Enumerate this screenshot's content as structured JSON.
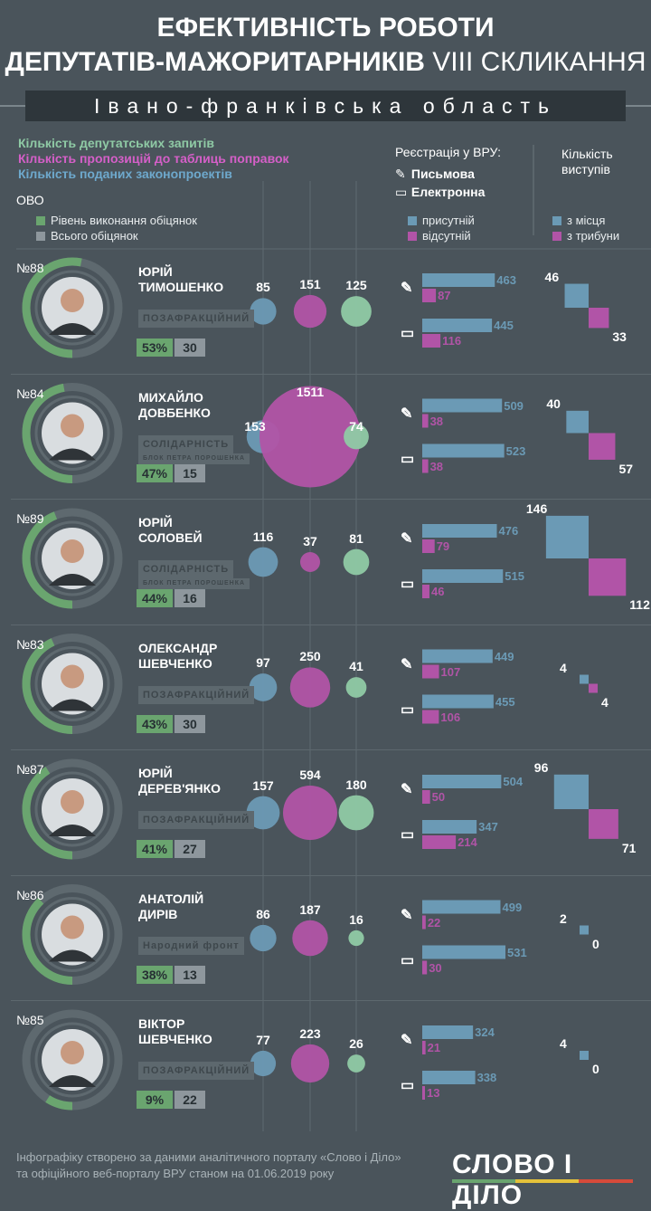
{
  "title": {
    "line1": "ЕФЕКТИВНІСТЬ РОБОТИ",
    "line2_bold": "ДЕПУТАТІВ-МАЖОРИТАРНИКІВ",
    "line2_rest": " VIII СКЛИКАННЯ"
  },
  "region": "Івано-франківська область",
  "legend": {
    "requests": "Кількість депутатських запитів",
    "amendments": "Кількість пропозицій до таблиць поправок",
    "bills": "Кількість поданих законопроектів",
    "ovo": "ОВО",
    "promises_done": "Рівень виконання обіцянок",
    "promises_total": "Всього обіцянок",
    "registration_title": "Реєстрація у ВРУ:",
    "written": "Письмова",
    "electronic": "Електронна",
    "present": "присутній",
    "absent": "відсутній",
    "speeches_title_1": "Кількість",
    "speeches_title_2": "виступів",
    "from_seat": "з місця",
    "from_tribune": "з трибуни"
  },
  "colors": {
    "background": "#4a545b",
    "green": "#6aa56f",
    "magenta": "#b154a7",
    "blue": "#6b9ab5",
    "mint": "#8fcaa5"
  },
  "chart_data": {
    "type": "table",
    "deputies": [
      {
        "district": "№88",
        "first": "ЮРІЙ",
        "last": "ТИМОШЕНКО",
        "faction": "ПОЗАФРАКЦІЙНИЙ",
        "promise_pct": "53%",
        "promise_total": "30",
        "requests": 85,
        "amendments": 151,
        "bills": 125,
        "written_present": 463,
        "written_absent": 87,
        "electronic_present": 445,
        "electronic_absent": 116,
        "speech_seat": 46,
        "speech_tribune": 33
      },
      {
        "district": "№84",
        "first": "МИХАЙЛО",
        "last": "ДОВБЕНКО",
        "faction": "СОЛІДАРНІСТЬ",
        "faction_sub": "БЛОК ПЕТРА ПОРОШЕНКА",
        "promise_pct": "47%",
        "promise_total": "15",
        "requests": 153,
        "amendments": 1511,
        "bills": 74,
        "written_present": 509,
        "written_absent": 38,
        "electronic_present": 523,
        "electronic_absent": 38,
        "speech_seat": 40,
        "speech_tribune": 57
      },
      {
        "district": "№89",
        "first": "ЮРІЙ",
        "last": "СОЛОВЕЙ",
        "faction": "СОЛІДАРНІСТЬ",
        "faction_sub": "БЛОК ПЕТРА ПОРОШЕНКА",
        "promise_pct": "44%",
        "promise_total": "16",
        "requests": 116,
        "amendments": 37,
        "bills": 81,
        "written_present": 476,
        "written_absent": 79,
        "electronic_present": 515,
        "electronic_absent": 46,
        "speech_seat": 146,
        "speech_tribune": 112
      },
      {
        "district": "№83",
        "first": "ОЛЕКСАНДР",
        "last": "ШЕВЧЕНКО",
        "faction": "ПОЗАФРАКЦІЙНИЙ",
        "promise_pct": "43%",
        "promise_total": "30",
        "requests": 97,
        "amendments": 250,
        "bills": 41,
        "written_present": 449,
        "written_absent": 107,
        "electronic_present": 455,
        "electronic_absent": 106,
        "speech_seat": 4,
        "speech_tribune": 4
      },
      {
        "district": "№87",
        "first": "ЮРІЙ",
        "last": "ДЕРЕВ'ЯНКО",
        "faction": "ПОЗАФРАКЦІЙНИЙ",
        "promise_pct": "41%",
        "promise_total": "27",
        "requests": 157,
        "amendments": 594,
        "bills": 180,
        "written_present": 504,
        "written_absent": 50,
        "electronic_present": 347,
        "electronic_absent": 214,
        "speech_seat": 96,
        "speech_tribune": 71
      },
      {
        "district": "№86",
        "first": "АНАТОЛІЙ",
        "last": "ДИРІВ",
        "faction": "Народний фронт",
        "promise_pct": "38%",
        "promise_total": "13",
        "requests": 86,
        "amendments": 187,
        "bills": 16,
        "written_present": 499,
        "written_absent": 22,
        "electronic_present": 531,
        "electronic_absent": 30,
        "speech_seat": 2,
        "speech_tribune": 0
      },
      {
        "district": "№85",
        "first": "ВІКТОР",
        "last": "ШЕВЧЕНКО",
        "faction": "ПОЗАФРАКЦІЙНИЙ",
        "promise_pct": "9%",
        "promise_total": "22",
        "requests": 77,
        "amendments": 223,
        "bills": 26,
        "written_present": 324,
        "written_absent": 21,
        "electronic_present": 338,
        "electronic_absent": 13,
        "speech_seat": 4,
        "speech_tribune": 0
      }
    ]
  },
  "footer": {
    "line1": "Інфографіку створено за даними аналітичного порталу «Слово і Діло»",
    "line2": "та офіційного веб-порталу ВРУ станом на 01.06.2019 року",
    "logo": "СЛОВО І ДІЛО"
  }
}
